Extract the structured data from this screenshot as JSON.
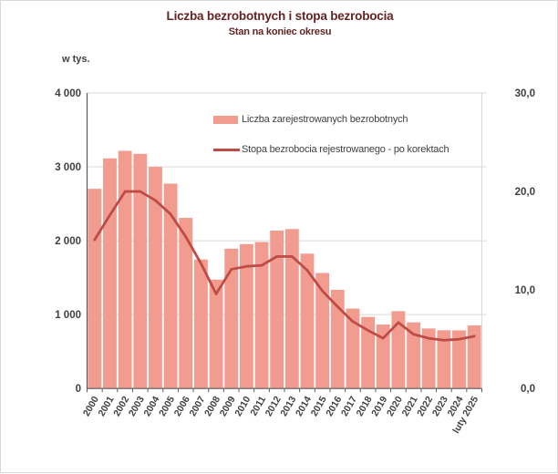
{
  "title": "Liczba bezrobotnych i stopa bezrobocia",
  "subtitle": "Stan na koniec okresu",
  "axis_unit_label": "w tys.",
  "legend": {
    "bars_label": "Liczba zarejestrowanych bezrobotnych",
    "line_label": "Stopa bezrobocia rejestrowanego - po korektach"
  },
  "colors": {
    "bar_fill": "#f29c8f",
    "line": "#be4b45",
    "title_text": "#632423",
    "axis_text": "#404040",
    "gridline": "#d9d9d9",
    "axis_line": "#595959"
  },
  "chart_data": {
    "type": "bar",
    "combo": "bar+line",
    "title": "Liczba bezrobotnych i stopa bezrobocia",
    "subtitle": "Stan na koniec okresu",
    "categories": [
      "2000",
      "2001",
      "2002",
      "2003",
      "2004",
      "2005",
      "2006",
      "2007",
      "2008",
      "2009",
      "2010",
      "2011",
      "2012",
      "2013",
      "2014",
      "2015",
      "2016",
      "2017",
      "2018",
      "2019",
      "2020",
      "2021",
      "2022",
      "2023",
      "2024",
      "luty 2025"
    ],
    "series": [
      {
        "name": "Liczba zarejestrowanych bezrobotnych",
        "type": "bar",
        "axis": "left",
        "unit": "tys.",
        "values": [
          2702.6,
          3115.1,
          3217.0,
          3175.7,
          2999.6,
          2773.0,
          2309.4,
          1746.6,
          1473.8,
          1892.7,
          1954.7,
          1982.7,
          2136.8,
          2157.9,
          1825.2,
          1563.3,
          1335.2,
          1081.7,
          968.9,
          866.4,
          1046.4,
          895.2,
          812.3,
          788.2,
          786.8,
          853.9
        ]
      },
      {
        "name": "Stopa bezrobocia rejestrowanego - po korektach",
        "type": "line",
        "axis": "right",
        "unit": "%",
        "values": [
          15.1,
          17.6,
          20.0,
          20.0,
          19.1,
          17.7,
          15.4,
          12.7,
          9.6,
          12.1,
          12.4,
          12.5,
          13.4,
          13.4,
          12.0,
          9.9,
          8.3,
          6.8,
          5.9,
          5.1,
          6.7,
          5.5,
          5.1,
          4.9,
          5.0,
          5.3
        ]
      }
    ],
    "left_axis": {
      "label": "w tys.",
      "min": 0,
      "max": 4000,
      "tick_values": [
        4000,
        3000,
        2000,
        1000,
        0
      ],
      "tick_labels": [
        "4 000",
        "3 000",
        "2 000",
        "1 000",
        "0"
      ]
    },
    "right_axis": {
      "min": 0,
      "max": 30,
      "tick_values": [
        30,
        20,
        10,
        0
      ],
      "tick_labels": [
        "30,0",
        "20,0",
        "10,0",
        "0,0"
      ]
    },
    "grid": true,
    "legend_position": "top-inside"
  }
}
